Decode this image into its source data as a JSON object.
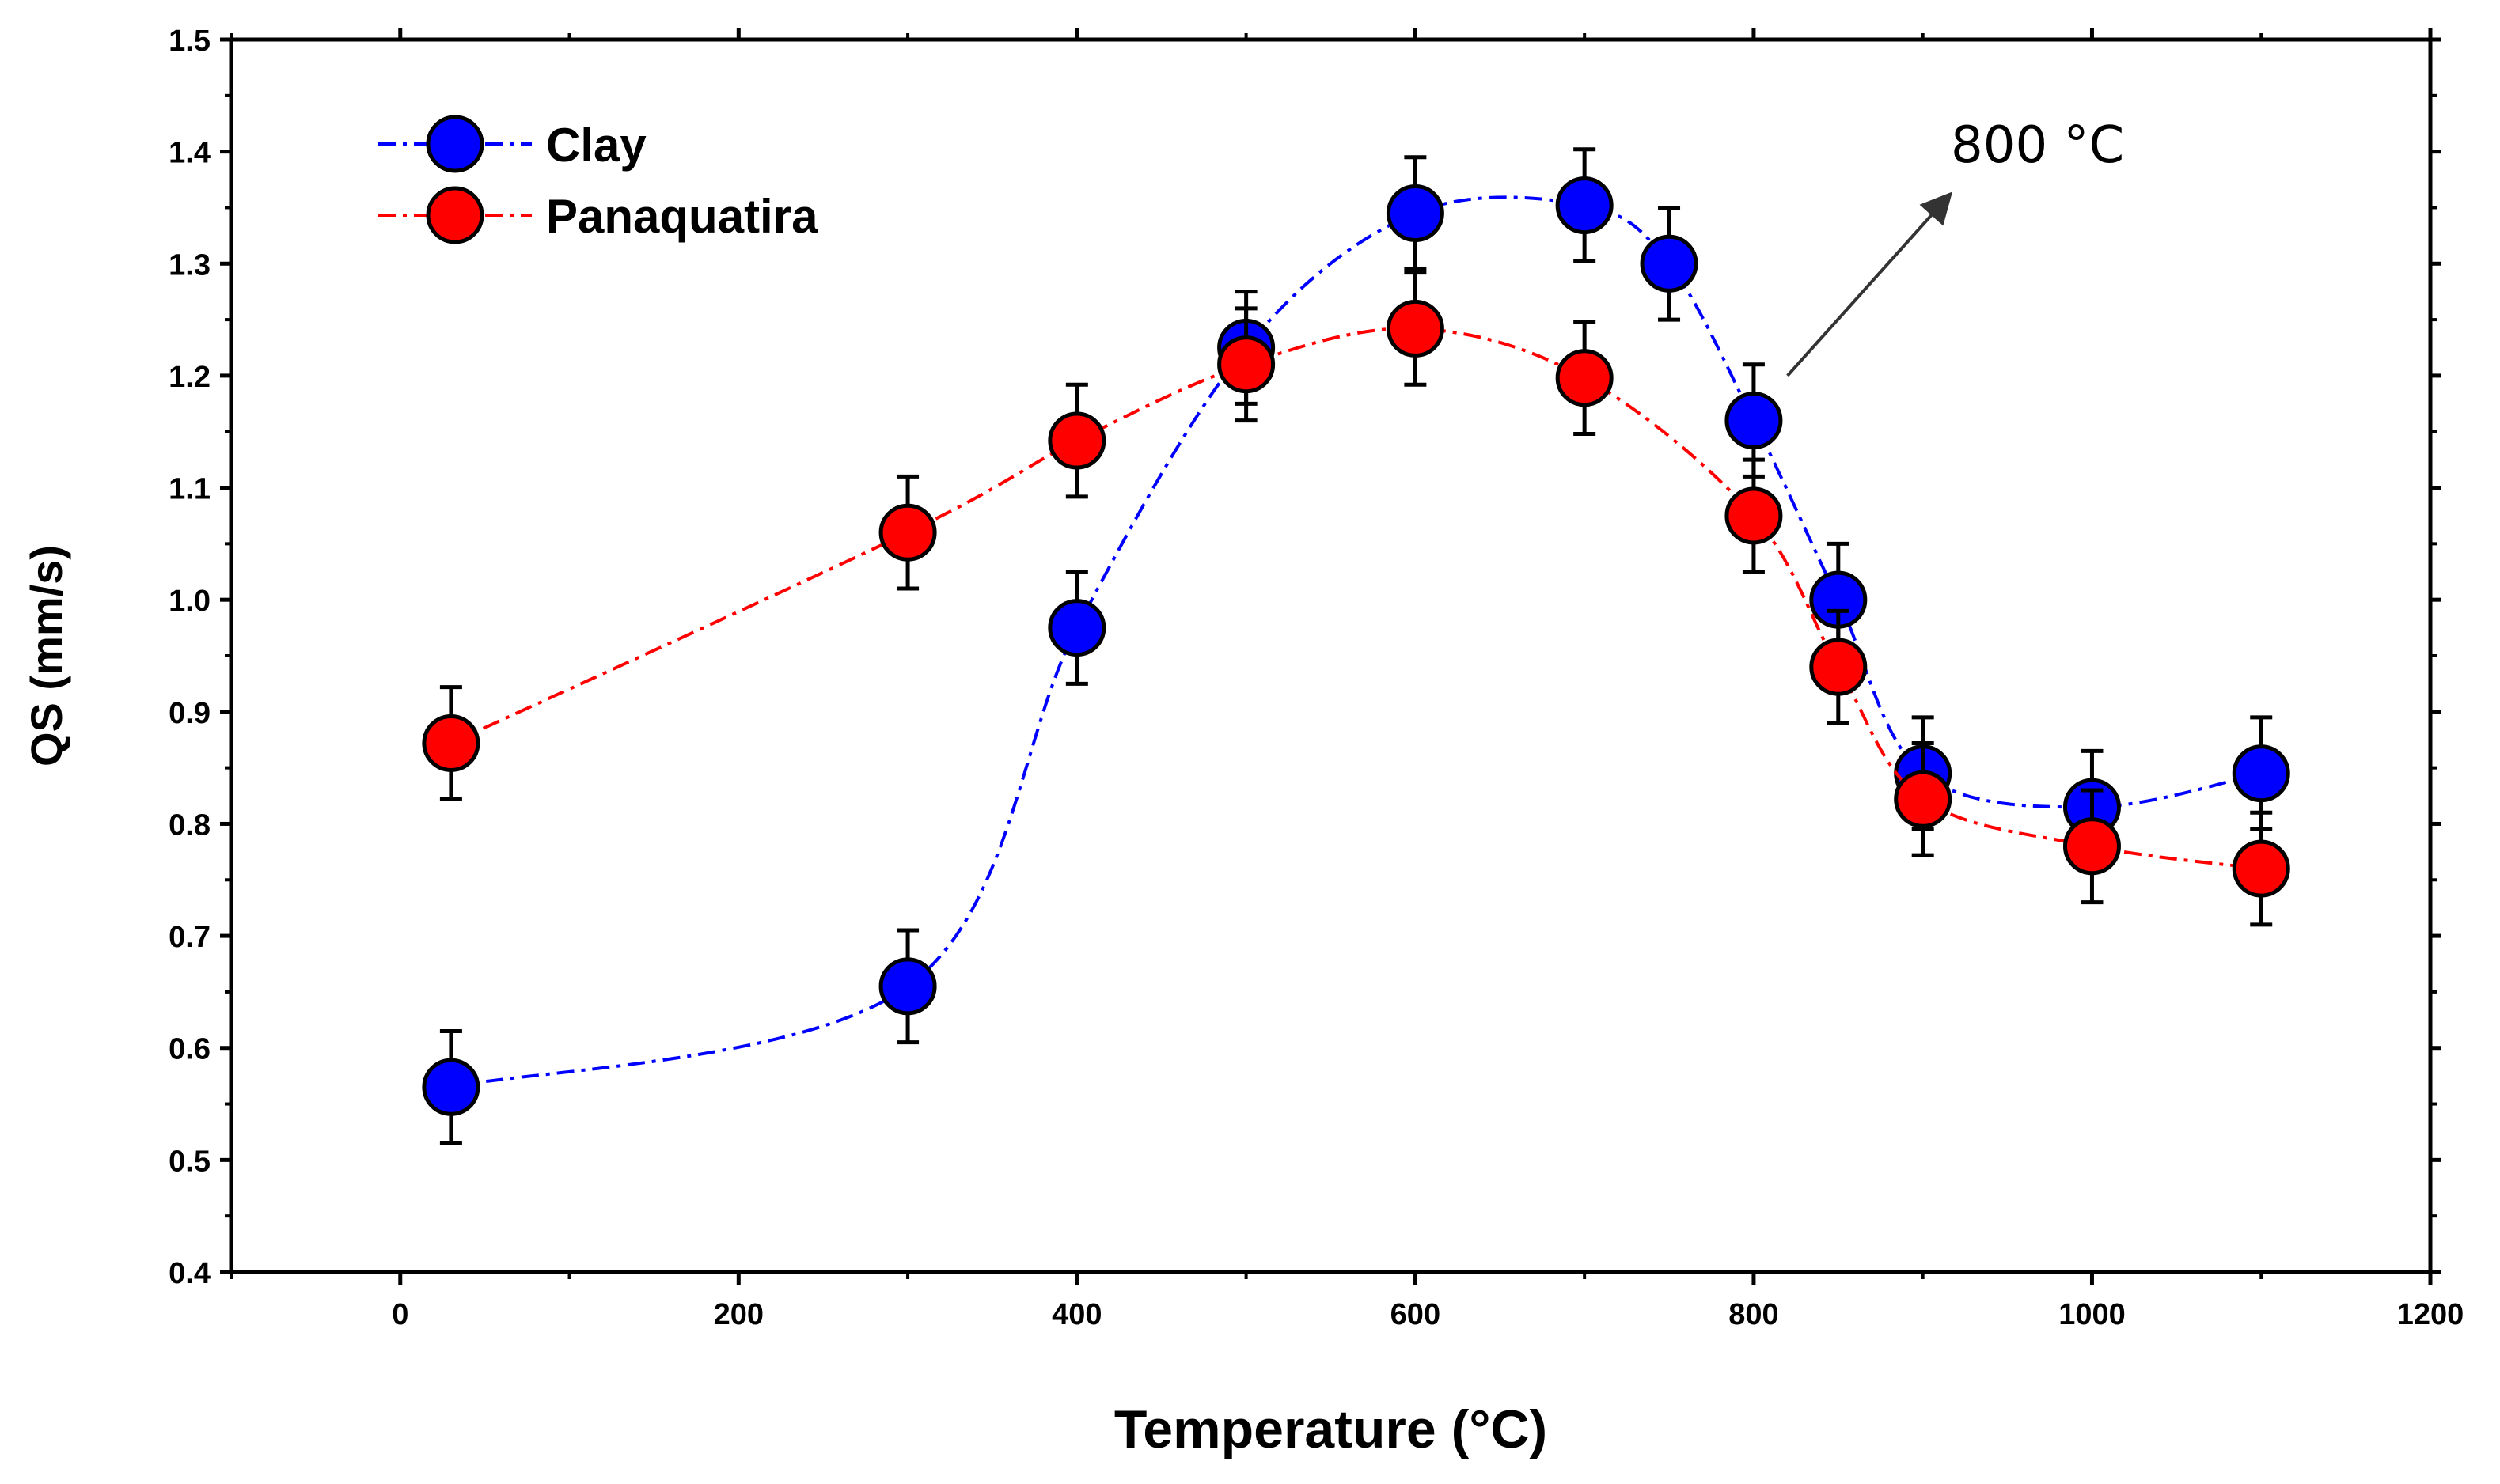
{
  "chart_data": {
    "type": "scatter",
    "title": "",
    "xlabel": "Temperature (°C)",
    "ylabel": "QS (mm/s)",
    "xlim": [
      -100,
      1200
    ],
    "ylim": [
      0.4,
      1.5
    ],
    "xticks": [
      0,
      200,
      400,
      600,
      800,
      1000,
      1200
    ],
    "yticks": [
      0.4,
      0.5,
      0.6,
      0.7,
      0.8,
      0.9,
      1.0,
      1.1,
      1.2,
      1.3,
      1.4,
      1.5
    ],
    "ytick_labels": [
      "0.4",
      "0.5",
      "0.6",
      "0.7",
      "0.8",
      "0.9",
      "1.0",
      "1.1",
      "1.2",
      "1.3",
      "1.4",
      "1.5"
    ],
    "grid": false,
    "legend_position": "top-left",
    "series": [
      {
        "name": "Clay",
        "color": "#0000ff",
        "line_style": "dash-dot",
        "x": [
          30,
          300,
          400,
          500,
          600,
          700,
          750,
          800,
          850,
          900,
          1000,
          1100
        ],
        "y": [
          0.565,
          0.655,
          0.975,
          1.225,
          1.345,
          1.352,
          1.3,
          1.16,
          1.0,
          0.845,
          0.815,
          0.845
        ],
        "error": [
          0.05,
          0.05,
          0.05,
          0.05,
          0.05,
          0.05,
          0.05,
          0.05,
          0.05,
          0.05,
          0.05,
          0.05
        ]
      },
      {
        "name": "Panaquatira",
        "color": "#ff0000",
        "line_style": "dash-dot",
        "x": [
          30,
          300,
          400,
          500,
          600,
          700,
          800,
          850,
          900,
          1000,
          1100
        ],
        "y": [
          0.872,
          1.06,
          1.142,
          1.21,
          1.242,
          1.198,
          1.075,
          0.94,
          0.822,
          0.78,
          0.76
        ],
        "error": [
          0.05,
          0.05,
          0.05,
          0.05,
          0.05,
          0.05,
          0.05,
          0.05,
          0.05,
          0.05,
          0.05
        ]
      }
    ],
    "annotations": [
      {
        "text": "800 °C",
        "arrow_from": [
          820,
          1.2
        ],
        "arrow_to": [
          915,
          1.36
        ]
      }
    ]
  }
}
